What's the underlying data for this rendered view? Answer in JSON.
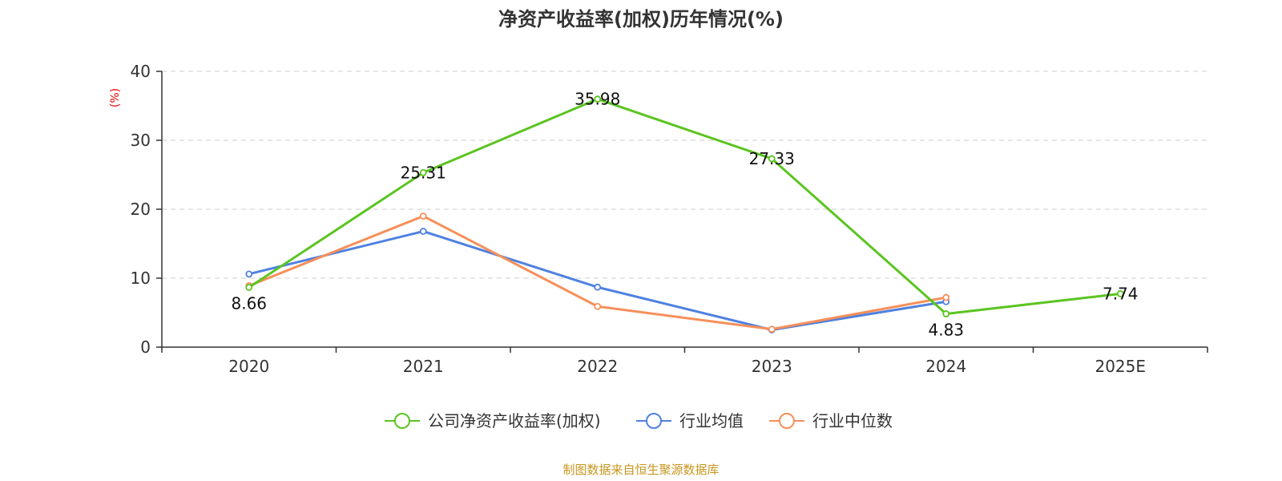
{
  "chart_data": {
    "type": "line",
    "title": "净资产收益率(加权)历年情况(%)",
    "ylabel": "(%)",
    "ylim": [
      0,
      40
    ],
    "yticks": [
      0,
      10,
      20,
      30,
      40
    ],
    "categories": [
      "2020",
      "2021",
      "2022",
      "2023",
      "2024",
      "2025E"
    ],
    "grid": true,
    "legend_position": "bottom-center",
    "series": [
      {
        "name": "公司净资产收益率(加权)",
        "color": "#5bc421",
        "values": [
          8.66,
          25.31,
          35.98,
          27.33,
          4.83,
          7.74
        ],
        "data_labels": [
          "8.66",
          "25.31",
          "35.98",
          "27.33",
          "4.83",
          "7.74"
        ]
      },
      {
        "name": "行业均值",
        "color": "#4f81e0",
        "values": [
          10.6,
          16.8,
          8.7,
          2.5,
          6.6,
          null
        ]
      },
      {
        "name": "行业中位数",
        "color": "#f68f5a",
        "values": [
          8.9,
          19.0,
          5.9,
          2.6,
          7.2,
          null
        ]
      }
    ],
    "unit_color": "#ee0000"
  },
  "footer": {
    "source": "制图数据来自恒生聚源数据库",
    "color": "#c8961e"
  }
}
